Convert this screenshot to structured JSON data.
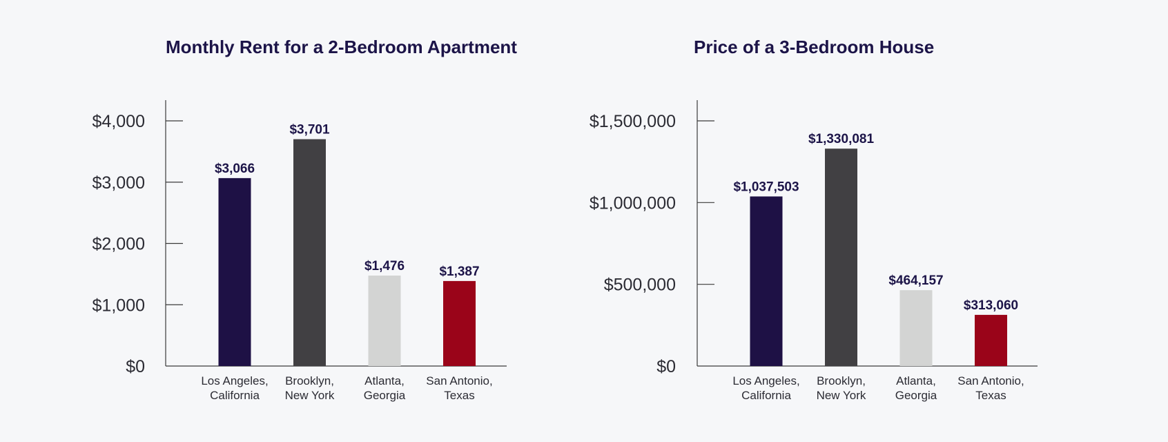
{
  "chart_data": [
    {
      "type": "bar",
      "title": "Monthly Rent for a 2-Bedroom Apartment",
      "xlabel": "",
      "ylabel": "",
      "categories": [
        [
          "Los Angeles,",
          "California"
        ],
        [
          "Brooklyn,",
          "New York"
        ],
        [
          "Atlanta,",
          "Georgia"
        ],
        [
          "San Antonio,",
          "Texas"
        ]
      ],
      "values": [
        3066,
        3701,
        1476,
        1387
      ],
      "value_labels": [
        "$3,066",
        "$3,701",
        "$1,476",
        "$1,387"
      ],
      "colors": [
        "#1e1145",
        "#414043",
        "#d3d4d3",
        "#9a0419"
      ],
      "ylim": [
        0,
        4000
      ],
      "yticks": [
        0,
        1000,
        2000,
        3000,
        4000
      ],
      "ytick_labels": [
        "$0",
        "$1,000",
        "$2,000",
        "$3,000",
        "$4,000"
      ],
      "grid": false,
      "legend": "none"
    },
    {
      "type": "bar",
      "title": "Price of a 3-Bedroom House",
      "xlabel": "",
      "ylabel": "",
      "categories": [
        [
          "Los Angeles,",
          "California"
        ],
        [
          "Brooklyn,",
          "New York"
        ],
        [
          "Atlanta,",
          "Georgia"
        ],
        [
          "San Antonio,",
          "Texas"
        ]
      ],
      "values": [
        1037503,
        1330081,
        464157,
        313060
      ],
      "value_labels": [
        "$1,037,503",
        "$1,330,081",
        "$464,157",
        "$313,060"
      ],
      "colors": [
        "#1e1145",
        "#414043",
        "#d3d4d3",
        "#9a0419"
      ],
      "ylim": [
        0,
        1500000
      ],
      "yticks": [
        0,
        500000,
        1000000,
        1500000
      ],
      "ytick_labels": [
        "$0",
        "$500,000",
        "$1,000,000",
        "$1,500,000"
      ],
      "grid": false,
      "legend": "none"
    }
  ]
}
